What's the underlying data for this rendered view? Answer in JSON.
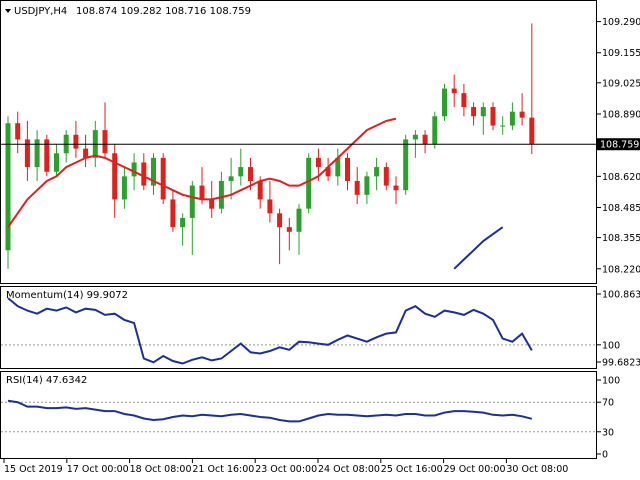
{
  "header": {
    "symbol": "USDJPY,H4",
    "ohlc": "108.874 109.282 108.716 108.759"
  },
  "colors": {
    "bull": "#2ca02c",
    "bear": "#e0201b",
    "sma_fast": "#e02020",
    "sma_slow": "#1e2f9a",
    "indicator": "#1e2f9a",
    "grid": "#999999"
  },
  "chart_data": [
    {
      "type": "candlestick",
      "name": "price",
      "ylim": [
        108.18,
        109.34
      ],
      "yticks": [
        "109.290",
        "109.155",
        "109.025",
        "108.890",
        "108.755",
        "108.620",
        "108.485",
        "108.355",
        "108.220"
      ],
      "last_price": "108.759",
      "candles": [
        [
          108.3,
          108.88,
          108.22,
          108.85
        ],
        [
          108.85,
          108.9,
          108.72,
          108.78
        ],
        [
          108.78,
          108.86,
          108.6,
          108.66
        ],
        [
          108.66,
          108.82,
          108.6,
          108.78
        ],
        [
          108.78,
          108.8,
          108.62,
          108.64
        ],
        [
          108.64,
          108.76,
          108.62,
          108.72
        ],
        [
          108.72,
          108.82,
          108.68,
          108.8
        ],
        [
          108.8,
          108.86,
          108.7,
          108.74
        ],
        [
          108.74,
          108.8,
          108.66,
          108.7
        ],
        [
          108.7,
          108.86,
          108.66,
          108.82
        ],
        [
          108.82,
          108.94,
          108.7,
          108.72
        ],
        [
          108.72,
          108.76,
          108.44,
          108.52
        ],
        [
          108.52,
          108.66,
          108.48,
          108.62
        ],
        [
          108.62,
          108.72,
          108.56,
          108.68
        ],
        [
          108.68,
          108.72,
          108.56,
          108.58
        ],
        [
          108.58,
          108.72,
          108.54,
          108.7
        ],
        [
          108.7,
          108.72,
          108.5,
          108.52
        ],
        [
          108.52,
          108.56,
          108.38,
          108.4
        ],
        [
          108.4,
          108.46,
          108.32,
          108.44
        ],
        [
          108.44,
          108.6,
          108.28,
          108.58
        ],
        [
          108.58,
          108.66,
          108.5,
          108.52
        ],
        [
          108.52,
          108.6,
          108.44,
          108.48
        ],
        [
          108.48,
          108.64,
          108.46,
          108.6
        ],
        [
          108.6,
          108.7,
          108.52,
          108.62
        ],
        [
          108.62,
          108.74,
          108.58,
          108.66
        ],
        [
          108.66,
          108.7,
          108.56,
          108.6
        ],
        [
          108.6,
          108.62,
          108.48,
          108.52
        ],
        [
          108.52,
          108.6,
          108.42,
          108.46
        ],
        [
          108.46,
          108.48,
          108.24,
          108.4
        ],
        [
          108.4,
          108.44,
          108.3,
          108.38
        ],
        [
          108.38,
          108.5,
          108.28,
          108.48
        ],
        [
          108.48,
          108.72,
          108.46,
          108.7
        ],
        [
          108.7,
          108.74,
          108.6,
          108.66
        ],
        [
          108.66,
          108.7,
          108.6,
          108.62
        ],
        [
          108.62,
          108.74,
          108.58,
          108.7
        ],
        [
          108.7,
          108.72,
          108.56,
          108.6
        ],
        [
          108.6,
          108.66,
          108.5,
          108.54
        ],
        [
          108.54,
          108.64,
          108.5,
          108.62
        ],
        [
          108.62,
          108.7,
          108.56,
          108.66
        ],
        [
          108.66,
          108.68,
          108.56,
          108.58
        ],
        [
          108.58,
          108.62,
          108.5,
          108.56
        ],
        [
          108.56,
          108.8,
          108.54,
          108.78
        ],
        [
          108.78,
          108.82,
          108.7,
          108.8
        ],
        [
          108.8,
          108.82,
          108.72,
          108.76
        ],
        [
          108.76,
          108.9,
          108.74,
          108.88
        ],
        [
          108.88,
          109.02,
          108.86,
          109.0
        ],
        [
          109.0,
          109.06,
          108.92,
          108.98
        ],
        [
          108.98,
          109.02,
          108.88,
          108.92
        ],
        [
          108.92,
          108.94,
          108.84,
          108.88
        ],
        [
          108.88,
          108.94,
          108.8,
          108.92
        ],
        [
          108.92,
          108.94,
          108.82,
          108.84
        ],
        [
          108.84,
          108.88,
          108.8,
          108.84
        ],
        [
          108.84,
          108.94,
          108.82,
          108.9
        ],
        [
          108.9,
          108.98,
          108.84,
          108.874
        ],
        [
          108.874,
          109.282,
          108.716,
          108.759
        ]
      ],
      "sma_fast": [
        108.4,
        108.46,
        108.52,
        108.56,
        108.6,
        108.62,
        108.66,
        108.68,
        108.7,
        108.71,
        108.7,
        108.68,
        108.66,
        108.64,
        108.62,
        108.6,
        108.58,
        108.56,
        108.54,
        108.53,
        108.52,
        108.52,
        108.53,
        108.54,
        108.56,
        108.58,
        108.6,
        108.61,
        108.6,
        108.58,
        108.58,
        108.6,
        108.62,
        108.66,
        108.7,
        108.74,
        108.78,
        108.82,
        108.84,
        108.86,
        108.87
      ],
      "sma_fast_start": 14,
      "sma_slow": [
        108.22,
        108.26,
        108.3,
        108.34,
        108.37,
        108.4
      ],
      "sma_slow_start": 49
    },
    {
      "type": "line",
      "name": "momentum",
      "title": "Momentum(14) 99.9072",
      "ylim": [
        99.66,
        100.88
      ],
      "yticks": [
        "100.8631",
        "100",
        "99.6823"
      ],
      "level": 100,
      "values": [
        100.75,
        100.62,
        100.55,
        100.5,
        100.58,
        100.55,
        100.6,
        100.52,
        100.58,
        100.56,
        100.48,
        100.5,
        100.4,
        100.35,
        99.78,
        99.72,
        99.82,
        99.74,
        99.7,
        99.76,
        99.8,
        99.75,
        99.78,
        99.9,
        100.02,
        99.88,
        99.86,
        99.9,
        99.96,
        99.92,
        100.05,
        100.04,
        100.02,
        100.0,
        100.08,
        100.15,
        100.1,
        100.05,
        100.12,
        100.18,
        100.2,
        100.55,
        100.62,
        100.5,
        100.45,
        100.55,
        100.52,
        100.48,
        100.56,
        100.5,
        100.4,
        100.1,
        100.05,
        100.18,
        99.91
      ]
    },
    {
      "type": "line",
      "name": "rsi",
      "title": "RSI(14) 47.6342",
      "ylim": [
        0,
        100
      ],
      "yticks": [
        "100",
        "70",
        "30",
        "0"
      ],
      "levels": [
        70,
        30
      ],
      "values": [
        72,
        70,
        64,
        64,
        62,
        62,
        63,
        61,
        62,
        60,
        58,
        58,
        54,
        52,
        48,
        46,
        47,
        50,
        52,
        51,
        53,
        52,
        51,
        53,
        54,
        52,
        50,
        49,
        46,
        44,
        44,
        48,
        52,
        54,
        53,
        53,
        52,
        51,
        52,
        53,
        52,
        54,
        54,
        52,
        52,
        56,
        58,
        58,
        57,
        56,
        53,
        52,
        53,
        51,
        47.6
      ]
    }
  ],
  "x_axis": {
    "labels": [
      {
        "text": "15 Oct 2019",
        "index": 0
      },
      {
        "text": "17 Oct 00:00",
        "index": 8
      },
      {
        "text": "18 Oct 08:00",
        "index": 16
      },
      {
        "text": "21 Oct 16:00",
        "index": 24
      },
      {
        "text": "23 Oct 00:00",
        "index": 32
      },
      {
        "text": "24 Oct 08:00",
        "index": 40
      },
      {
        "text": "25 Oct 16:00",
        "index": 48
      },
      {
        "text": "29 Oct 00:00",
        "index": 56
      },
      {
        "text": "30 Oct 08:00",
        "index": 64
      }
    ]
  }
}
